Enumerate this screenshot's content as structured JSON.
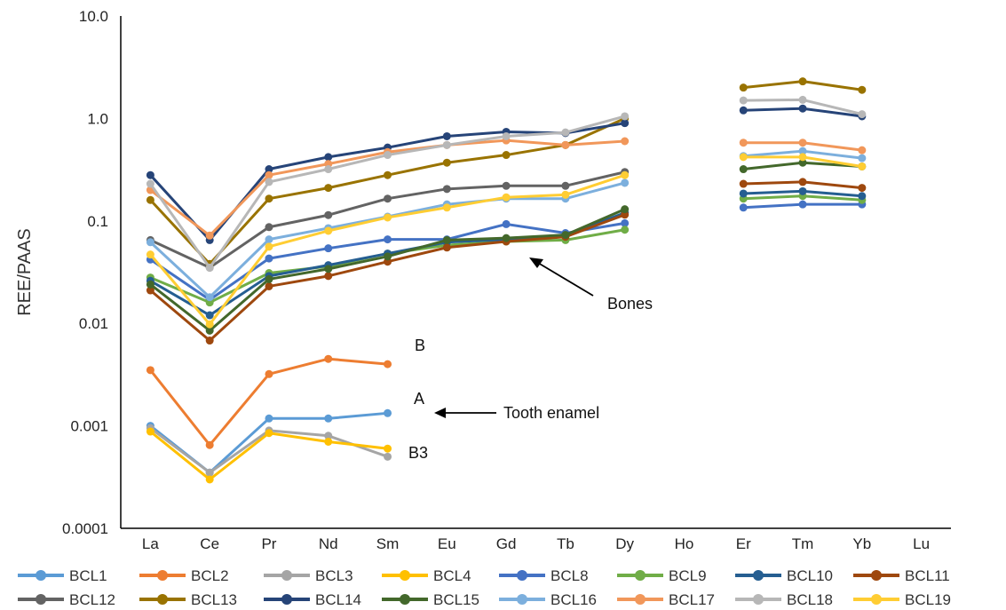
{
  "chart_data": {
    "type": "line",
    "xlabel": "",
    "ylabel": "REE/PAAS",
    "y_scale": "log",
    "ylim": [
      0.0001,
      10
    ],
    "y_ticks": [
      "0.0001",
      "0.001",
      "0.01",
      "0.1",
      "1.0",
      "10.0"
    ],
    "grid": false,
    "legend_position": "bottom",
    "categories": [
      "La",
      "Ce",
      "Pr",
      "Nd",
      "Sm",
      "Eu",
      "Gd",
      "Tb",
      "Dy",
      "Ho",
      "Er",
      "Tm",
      "Yb",
      "Lu"
    ],
    "series": [
      {
        "name": "BCL1",
        "color": "#5b9bd5",
        "values": [
          0.001,
          0.00035,
          0.00118,
          0.00118,
          0.00133,
          null,
          null,
          null,
          null,
          null,
          null,
          null,
          null,
          null
        ]
      },
      {
        "name": "BCL2",
        "color": "#ed7d31",
        "values": [
          0.0035,
          0.00065,
          0.0032,
          0.0045,
          0.004,
          null,
          null,
          null,
          null,
          null,
          null,
          null,
          null,
          null
        ]
      },
      {
        "name": "BCL3",
        "color": "#a5a5a5",
        "values": [
          0.00095,
          0.00035,
          0.0009,
          0.0008,
          0.0005,
          null,
          null,
          null,
          null,
          null,
          null,
          null,
          null,
          null
        ]
      },
      {
        "name": "BCL4",
        "color": "#ffc000",
        "values": [
          0.00088,
          0.0003,
          0.00085,
          0.0007,
          0.0006,
          null,
          null,
          null,
          null,
          null,
          null,
          null,
          null,
          null
        ]
      },
      {
        "name": "BCL8",
        "color": "#4472c4",
        "values": [
          0.042,
          0.017,
          0.043,
          0.054,
          0.066,
          0.066,
          0.093,
          0.076,
          0.095,
          null,
          0.135,
          0.145,
          0.145,
          null
        ]
      },
      {
        "name": "BCL9",
        "color": "#70ad47",
        "values": [
          0.028,
          0.016,
          0.031,
          0.036,
          0.048,
          0.058,
          0.063,
          0.065,
          0.082,
          null,
          0.165,
          0.175,
          0.16,
          null
        ]
      },
      {
        "name": "BCL10",
        "color": "#255e91",
        "values": [
          0.026,
          0.012,
          0.029,
          0.037,
          0.048,
          0.062,
          0.066,
          0.072,
          0.12,
          null,
          0.185,
          0.195,
          0.175,
          null
        ]
      },
      {
        "name": "BCL11",
        "color": "#9e480e",
        "values": [
          0.021,
          0.0068,
          0.023,
          0.029,
          0.04,
          0.055,
          0.063,
          0.07,
          0.115,
          null,
          0.23,
          0.24,
          0.21,
          null
        ]
      },
      {
        "name": "BCL12",
        "color": "#636363",
        "values": [
          0.065,
          0.035,
          0.087,
          0.114,
          0.165,
          0.205,
          0.22,
          0.22,
          0.3,
          null,
          null,
          null,
          null,
          null
        ]
      },
      {
        "name": "BCL13",
        "color": "#997300",
        "values": [
          0.16,
          0.038,
          0.165,
          0.21,
          0.28,
          0.37,
          0.44,
          0.55,
          1.0,
          null,
          2.0,
          2.3,
          1.9,
          null
        ]
      },
      {
        "name": "BCL14",
        "color": "#264478",
        "values": [
          0.28,
          0.065,
          0.32,
          0.42,
          0.52,
          0.67,
          0.74,
          0.72,
          0.9,
          null,
          1.2,
          1.25,
          1.05,
          null
        ]
      },
      {
        "name": "BCL15",
        "color": "#43682b",
        "values": [
          0.024,
          0.0085,
          0.027,
          0.034,
          0.045,
          0.065,
          0.068,
          0.073,
          0.13,
          null,
          0.32,
          0.37,
          0.34,
          null
        ]
      },
      {
        "name": "BCL16",
        "color": "#7cafdd",
        "values": [
          0.062,
          0.018,
          0.066,
          0.085,
          0.11,
          0.145,
          0.165,
          0.165,
          0.235,
          null,
          0.43,
          0.48,
          0.41,
          null
        ]
      },
      {
        "name": "BCL17",
        "color": "#f1975a",
        "values": [
          0.2,
          0.072,
          0.28,
          0.36,
          0.47,
          0.55,
          0.61,
          0.55,
          0.6,
          null,
          0.58,
          0.58,
          0.49,
          null
        ]
      },
      {
        "name": "BCL18",
        "color": "#b7b7b7",
        "values": [
          0.23,
          0.035,
          0.24,
          0.32,
          0.44,
          0.55,
          0.67,
          0.73,
          1.05,
          null,
          1.5,
          1.52,
          1.1,
          null
        ]
      },
      {
        "name": "BCL19",
        "color": "#ffcd33",
        "values": [
          0.047,
          0.0098,
          0.056,
          0.08,
          0.108,
          0.135,
          0.17,
          0.18,
          0.28,
          null,
          0.42,
          0.42,
          0.34,
          null
        ]
      }
    ],
    "annotations": [
      {
        "text": "Bones",
        "arrow": true
      },
      {
        "text": "Tooth enamel",
        "arrow": true
      },
      {
        "text": "B",
        "arrow": false
      },
      {
        "text": "A",
        "arrow": false
      },
      {
        "text": "B3",
        "arrow": false
      }
    ]
  }
}
